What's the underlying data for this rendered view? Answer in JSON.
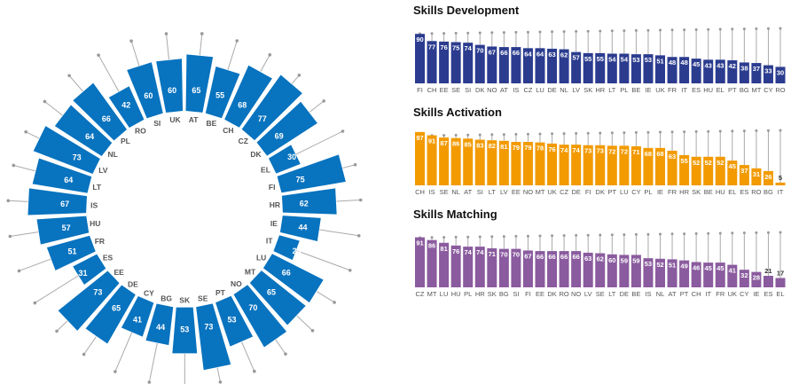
{
  "colors": {
    "development": "#2b3c8f",
    "activation": "#f29a00",
    "matching": "#8a5b9e",
    "radial": "#0873bf",
    "tick_label": "#555555",
    "lollipop": "#aaaaaa"
  },
  "chart_data": [
    {
      "type": "bar",
      "variant": "radial",
      "categories": [
        "AT",
        "BE",
        "CH",
        "CZ",
        "DK",
        "EL",
        "FI",
        "HR",
        "IE",
        "IT",
        "LU",
        "MT",
        "NO",
        "PT",
        "SE",
        "SK",
        "BG",
        "CY",
        "DE",
        "EE",
        "ES",
        "FR",
        "HU",
        "IS",
        "LT",
        "LV",
        "NL",
        "PL",
        "RO",
        "SI",
        "UK"
      ],
      "values": [
        65,
        55,
        68,
        77,
        69,
        30,
        75,
        62,
        44,
        24,
        66,
        65,
        70,
        53,
        73,
        53,
        44,
        41,
        65,
        73,
        31,
        51,
        57,
        67,
        64,
        73,
        64,
        66,
        42,
        60,
        60
      ],
      "title": "",
      "xlabel": "",
      "ylabel": ""
    },
    {
      "type": "bar",
      "title": "Skills Development",
      "categories": [
        "FI",
        "CH",
        "EE",
        "SE",
        "SI",
        "DK",
        "NO",
        "AT",
        "IS",
        "CZ",
        "LU",
        "DE",
        "NL",
        "LV",
        "SK",
        "HR",
        "LT",
        "PL",
        "BE",
        "IE",
        "UK",
        "FR",
        "IT",
        "ES",
        "HU",
        "EL",
        "PT",
        "BG",
        "MT",
        "CY",
        "RO"
      ],
      "values": [
        90,
        77,
        76,
        75,
        74,
        70,
        67,
        66,
        66,
        64,
        64,
        63,
        62,
        57,
        55,
        55,
        54,
        54,
        53,
        53,
        51,
        48,
        48,
        45,
        43,
        43,
        42,
        38,
        37,
        33,
        30
      ],
      "ylim": [
        0,
        100
      ]
    },
    {
      "type": "bar",
      "title": "Skills Activation",
      "categories": [
        "CH",
        "IS",
        "SE",
        "NL",
        "AT",
        "SI",
        "LT",
        "LV",
        "EE",
        "NO",
        "MT",
        "UK",
        "CZ",
        "DE",
        "FI",
        "DK",
        "PT",
        "LU",
        "CY",
        "PL",
        "IE",
        "FR",
        "HR",
        "SK",
        "BE",
        "HU",
        "EL",
        "ES",
        "RO",
        "BG",
        "IT"
      ],
      "values": [
        97,
        91,
        87,
        86,
        85,
        83,
        82,
        81,
        79,
        79,
        78,
        76,
        74,
        74,
        73,
        73,
        72,
        72,
        71,
        68,
        68,
        63,
        55,
        52,
        52,
        52,
        45,
        37,
        31,
        26,
        5
      ],
      "ylim": [
        0,
        100
      ]
    },
    {
      "type": "bar",
      "title": "Skills Matching",
      "categories": [
        "CZ",
        "MT",
        "LU",
        "HU",
        "PL",
        "HR",
        "SK",
        "BG",
        "SI",
        "FI",
        "EE",
        "DK",
        "RO",
        "NO",
        "LV",
        "SE",
        "LT",
        "DE",
        "BE",
        "IS",
        "NL",
        "AT",
        "PT",
        "CH",
        "IT",
        "FR",
        "UK",
        "CY",
        "IE",
        "ES",
        "EL"
      ],
      "values": [
        91,
        86,
        81,
        76,
        74,
        74,
        71,
        70,
        70,
        67,
        66,
        66,
        66,
        66,
        63,
        62,
        60,
        59,
        59,
        53,
        52,
        51,
        49,
        46,
        45,
        45,
        41,
        32,
        28,
        21,
        17
      ],
      "ylim": [
        0,
        100
      ]
    }
  ]
}
